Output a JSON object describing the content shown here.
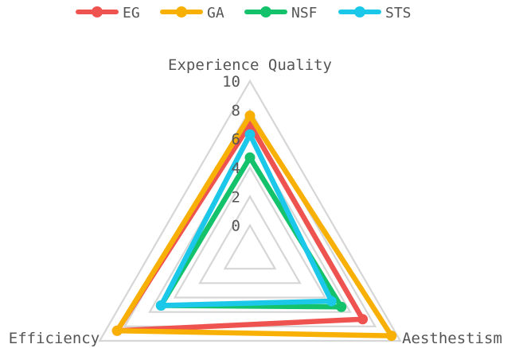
{
  "chart_data": {
    "type": "radar",
    "axes": [
      "Experience Quality",
      "Aesthestism",
      "Efficiency"
    ],
    "rlim": [
      -2,
      10
    ],
    "ticks": [
      "0",
      "2",
      "4",
      "6",
      "8",
      "10"
    ],
    "grid": true,
    "legend_position": "top-center",
    "series": [
      {
        "name": "EG",
        "color": "#ef5350",
        "values": [
          7.0,
          7.0,
          8.6
        ]
      },
      {
        "name": "GA",
        "color": "#f9b005",
        "values": [
          7.6,
          9.3,
          8.6
        ]
      },
      {
        "name": "NSF",
        "color": "#13c26b",
        "values": [
          4.7,
          5.3,
          5.1
        ]
      },
      {
        "name": "STS",
        "color": "#1cc8ea",
        "values": [
          6.3,
          4.5,
          5.1
        ]
      }
    ]
  }
}
